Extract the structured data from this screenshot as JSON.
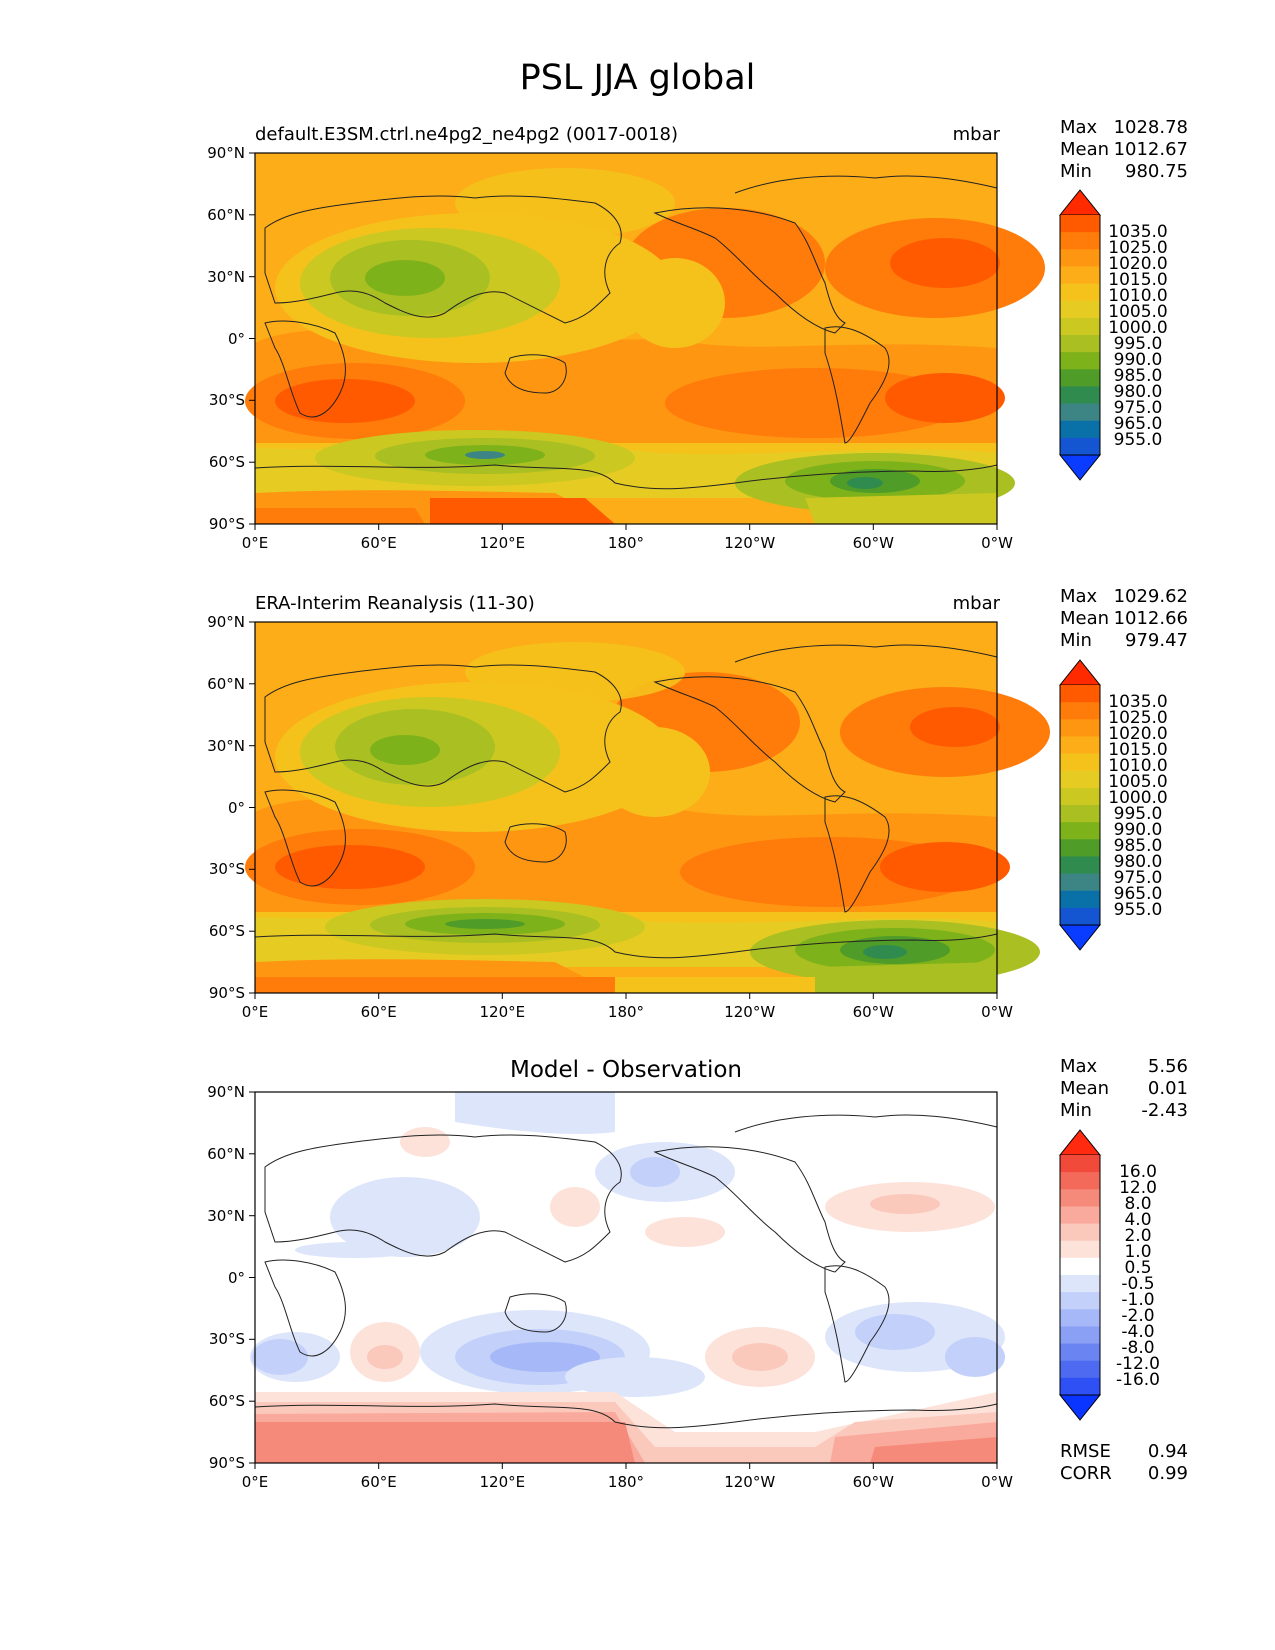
{
  "title": "PSL JJA global",
  "x_tick_labels": [
    "0°E",
    "60°E",
    "120°E",
    "180°",
    "120°W",
    "60°W",
    "0°W"
  ],
  "y_tick_labels": [
    "90°N",
    "60°N",
    "30°N",
    "0°",
    "30°S",
    "60°S",
    "90°S"
  ],
  "panels": [
    {
      "title_left": "default.E3SM.ctrl.ne4pg2_ne4pg2 (0017-0018)",
      "units": "mbar",
      "stats": [
        {
          "label": "Max",
          "value": "1028.78"
        },
        {
          "label": "Mean",
          "value": "1012.67"
        },
        {
          "label": "Min",
          "value": "980.75"
        }
      ],
      "colorbar_labels": [
        "1035.0",
        "1025.0",
        "1020.0",
        "1015.0",
        "1010.0",
        "1005.0",
        "1000.0",
        "995.0",
        "990.0",
        "985.0",
        "980.0",
        "975.0",
        "965.0",
        "955.0"
      ],
      "colorbar_colors": [
        "#ff2a00",
        "#ff5a00",
        "#ff7b0a",
        "#ff9612",
        "#fcad18",
        "#f5c21c",
        "#e6cc22",
        "#cbc822",
        "#a9bf22",
        "#7eb21a",
        "#4f9c28",
        "#2f8c4e",
        "#3d8585",
        "#0a70a8",
        "#1455d2",
        "#0a3cff"
      ]
    },
    {
      "title_left": "ERA-Interim Reanalysis (11-30)",
      "units": "mbar",
      "stats": [
        {
          "label": "Max",
          "value": "1029.62"
        },
        {
          "label": "Mean",
          "value": "1012.66"
        },
        {
          "label": "Min",
          "value": "979.47"
        }
      ],
      "colorbar_labels": [
        "1035.0",
        "1025.0",
        "1020.0",
        "1015.0",
        "1010.0",
        "1005.0",
        "1000.0",
        "995.0",
        "990.0",
        "985.0",
        "980.0",
        "975.0",
        "965.0",
        "955.0"
      ],
      "colorbar_colors": [
        "#ff2a00",
        "#ff5a00",
        "#ff7b0a",
        "#ff9612",
        "#fcad18",
        "#f5c21c",
        "#e6cc22",
        "#cbc822",
        "#a9bf22",
        "#7eb21a",
        "#4f9c28",
        "#2f8c4e",
        "#3d8585",
        "#0a70a8",
        "#1455d2",
        "#0a3cff"
      ]
    },
    {
      "title_center": "Model - Observation",
      "stats": [
        {
          "label": "Max",
          "value": "5.56"
        },
        {
          "label": "Mean",
          "value": "0.01"
        },
        {
          "label": "Min",
          "value": "-2.43"
        }
      ],
      "colorbar_labels": [
        "16.0",
        "12.0",
        "8.0",
        "4.0",
        "2.0",
        "1.0",
        "0.5",
        "-0.5",
        "-1.0",
        "-2.0",
        "-4.0",
        "-8.0",
        "-12.0",
        "-16.0"
      ],
      "colorbar_colors": [
        "#ff2a10",
        "#f24a3a",
        "#f36a5a",
        "#f68a7a",
        "#f9aa9c",
        "#fbc8bc",
        "#fde2da",
        "#ffffff",
        "#dde5fb",
        "#c3d0fa",
        "#a6b8f7",
        "#8aa0f5",
        "#6a84f2",
        "#4e6af0",
        "#2f50f5",
        "#0a34ff"
      ],
      "rmse_label": "RMSE",
      "rmse_value": "0.94",
      "corr_label": "CORR",
      "corr_value": "0.99"
    }
  ]
}
